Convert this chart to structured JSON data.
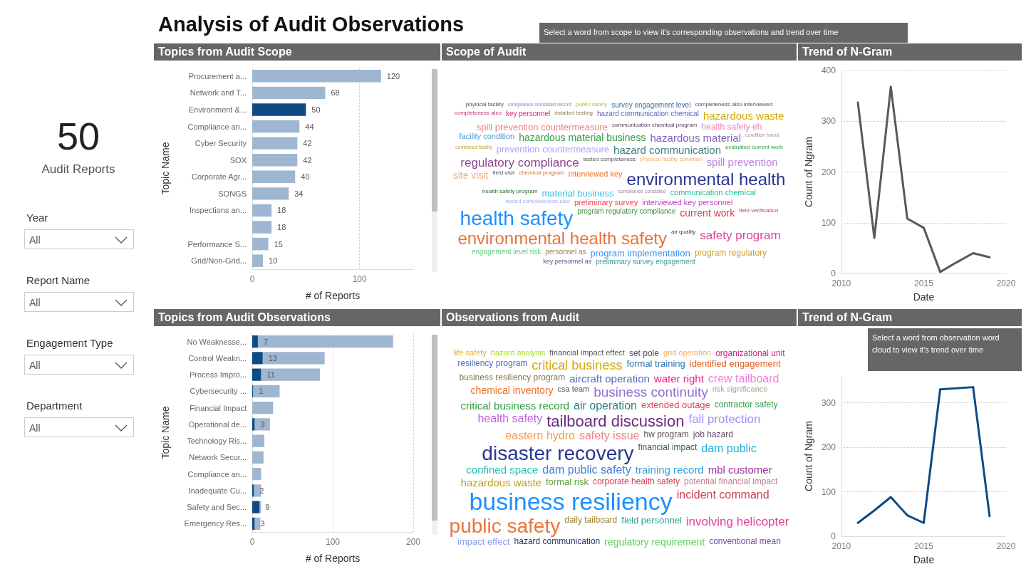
{
  "chart_data": [
    {
      "type": "other",
      "title": "Analysis of Audit Observations",
      "annotations": [
        "50",
        "Audit Reports",
        "Year",
        "All",
        "Report Name",
        "All",
        "Engagement Type",
        "All",
        "Department",
        "All"
      ]
    },
    {
      "type": "bar",
      "title": "Topics from Audit Scope",
      "orientation": "horizontal",
      "categories": [
        "Procurement a...",
        "Network and T...",
        "Environment &...",
        "Compliance an...",
        "Cyber Security",
        "SOX",
        "Corporate Agr...",
        "SONGS",
        "Inspections an...",
        null,
        "Performance S...",
        "Grid/Non-Grid..."
      ],
      "values": [
        120,
        68,
        50,
        44,
        42,
        42,
        40,
        34,
        18,
        18,
        15,
        10
      ],
      "colors": [
        "#9fb6d1",
        "#9fb6d1",
        "#0e4a84",
        "#9fb6d1",
        "#9fb6d1",
        "#9fb6d1",
        "#9fb6d1",
        "#9fb6d1",
        "#9fb6d1",
        "#9fb6d1",
        "#9fb6d1",
        "#9fb6d1"
      ],
      "data_labels": true,
      "xlim": [
        0,
        150
      ],
      "xticks": [
        0,
        100
      ],
      "grid": "x",
      "xlabel": "# of Reports",
      "ylabel": "Topic Name"
    },
    {
      "type": "other",
      "title": "Scope of Audit",
      "categories": [
        "physical facility",
        "compliance consisted record",
        "public safety",
        "survey engagement level",
        "completeness also interviewed",
        "completeness also",
        "key personnel",
        "detailed testing",
        "hazard communication chemical",
        "hazardous waste",
        "spill prevention countermeasure",
        "communication chemical program",
        "health safety eh",
        "facility condition",
        "hazardous material business",
        "hazardous material",
        "condition found",
        "combined facility",
        "prevention countermeasure",
        "hazard communication",
        "evaluated current work",
        "regulatory compliance",
        "tested completeness",
        "physical facility condition",
        "spill prevention",
        "site visit",
        "field visit",
        "chemical program",
        "interviewed key",
        "environmental health",
        "health safety program",
        "material business",
        "compliance consisted",
        "communication chemical",
        "tested completeness also",
        "preliminary survey",
        "interviewed key personnel",
        "health safety",
        "program regulatory compliance",
        "current work",
        "field verification",
        "environmental health safety",
        "air quality",
        "safety program",
        "engagement level risk",
        "personnel as",
        "program implementation",
        "program regulatory",
        "key personnel as",
        "preliminary survey engagement"
      ],
      "colors": [
        "#555555",
        "#7090d0",
        "#9acd32",
        "#3a6ea5",
        "#5a4a6a",
        "#c0307a",
        "#e0208a",
        "#8a7a4a",
        "#5a6ac0",
        "#d4aa00",
        "#f08080",
        "#5a3a5a",
        "#f080c0",
        "#40a0d0",
        "#30a040",
        "#8060c0",
        "#a89090",
        "#c8a030",
        "#b0a0ff",
        "#408080",
        "#30a040",
        "#904090",
        "#555555",
        "#f0b060",
        "#c080e0",
        "#f0b080",
        "#555555",
        "#d07030",
        "#f07020",
        "#283593",
        "#2e6b30",
        "#40c0e0",
        "#a080a0",
        "#20c0a0",
        "#a0b0f0",
        "#f04050",
        "#c040c0",
        "#1e90ff",
        "#409040",
        "#d04050",
        "#d04050",
        "#e8743b",
        "#334060",
        "#e040a0",
        "#60d080",
        "#a08040",
        "#4090f0",
        "#d0a020",
        "#6a4a8a",
        "#40a090"
      ]
    },
    {
      "type": "line",
      "title": "Trend of N-Gram",
      "annotations": [
        "Select a word from scope to view it's corresponding observations and trend over time"
      ],
      "series": [
        {
          "color": "#595959",
          "x": [
            2011,
            2012,
            2013,
            2014,
            2015,
            2016,
            2017,
            2018,
            2019
          ],
          "values": [
            337,
            70,
            368,
            108,
            90,
            3,
            22,
            40,
            32
          ]
        }
      ],
      "xlim": [
        2010,
        2020
      ],
      "xticks": [
        2010,
        2015,
        2020
      ],
      "ylim": [
        0,
        400
      ],
      "yticks": [
        0,
        100,
        200,
        300,
        400
      ],
      "grid": "y",
      "xlabel": "Date",
      "ylabel": "Count of Ngram"
    },
    {
      "type": "bar",
      "title": "Topics from Audit Observations",
      "orientation": "horizontal",
      "categories": [
        "No Weaknesse...",
        "Control Weakn...",
        "Process Impro...",
        "Cybersecurity ...",
        "Financial Impact",
        "Operational de...",
        "Technology Ris...",
        "Network Secur...",
        "Compliance an...",
        "Inadequate Cu...",
        "Safety and Sec...",
        "Emergency Res..."
      ],
      "stacked": true,
      "series": [
        {
          "color": "#0e4a84",
          "values": [
            7,
            13,
            11,
            1,
            null,
            3,
            null,
            null,
            null,
            2,
            9,
            3
          ],
          "value_labels": [
            "7",
            "13",
            "11",
            "1",
            null,
            "3",
            null,
            null,
            null,
            "2",
            "9",
            "3"
          ]
        },
        {
          "color": "#9fb6d1",
          "values": [
            168,
            77,
            73,
            33,
            26,
            19,
            15,
            14,
            11,
            9,
            2,
            7
          ]
        }
      ],
      "xlim": [
        0,
        200
      ],
      "xticks": [
        0,
        100,
        200
      ],
      "grid": "x",
      "xlabel": "# of Reports",
      "ylabel": "Topic Name"
    },
    {
      "type": "other",
      "title": "Observations from Audit",
      "categories": [
        "life safety",
        "hazard analysis",
        "financial impact effect",
        "set pole",
        "grid operation",
        "organizational unit",
        "resiliency program",
        "critical business",
        "formal training",
        "identified engagement",
        "business resiliency program",
        "aircraft operation",
        "water right",
        "crew tailboard",
        "chemical inventory",
        "csa team",
        "business continuity",
        "risk significance",
        "critical business record",
        "air operation",
        "extended outage",
        "contractor safety",
        "health safety",
        "tailboard discussion",
        "fall protection",
        "eastern hydro",
        "safety issue",
        "hw program",
        "job hazard",
        "disaster recovery",
        "financial impact",
        "dam public",
        "confined space",
        "dam public safety",
        "training record",
        "mbl customer",
        "hazardous waste",
        "formal risk",
        "corporate health safety",
        "potential financial impact",
        "business resiliency",
        "incident command",
        "public safety",
        "daily tailboard",
        "field personnel",
        "involving helicopter",
        "impact effect",
        "hazard communication",
        "regulatory requirement",
        "conventional mean"
      ],
      "colors": [
        "#e0b030",
        "#a0e020",
        "#555555",
        "#4a4a6a",
        "#f0b060",
        "#d02080",
        "#5070c0",
        "#d4aa00",
        "#3070b0",
        "#e06020",
        "#8a7a4a",
        "#5070c0",
        "#f02080",
        "#f080e0",
        "#f07020",
        "#4a5a5a",
        "#9070d0",
        "#b0a090",
        "#30a040",
        "#308080",
        "#f04050",
        "#30a040",
        "#c060e0",
        "#6a2a80",
        "#a090ff",
        "#f0a050",
        "#f08080",
        "#555555",
        "#6a4a6a",
        "#283593",
        "#306040",
        "#20b0e0",
        "#20c0b0",
        "#4080e0",
        "#30a0e0",
        "#a030a0",
        "#c0a020",
        "#60a040",
        "#d04050",
        "#c08090",
        "#1e90ff",
        "#d04050",
        "#e8743b",
        "#a08030",
        "#30a090",
        "#e040a0",
        "#8aa0f0",
        "#2a3a6a",
        "#60d060",
        "#7a4aa0"
      ]
    },
    {
      "type": "line",
      "title": "Trend of N-Gram",
      "annotations": [
        "Select a word from observation word cloud to view it's trend over time"
      ],
      "series": [
        {
          "color": "#0e4a84",
          "x": [
            2011,
            2012,
            2013,
            2014,
            2015,
            2016,
            2018,
            2019
          ],
          "values": [
            30,
            58,
            88,
            47,
            30,
            330,
            335,
            45
          ]
        }
      ],
      "xlim": [
        2010,
        2020
      ],
      "xticks": [
        2010,
        2015,
        2020
      ],
      "ylim": [
        0,
        360
      ],
      "yticks": [
        0,
        100,
        200,
        300
      ],
      "grid": "y",
      "xlabel": "Date",
      "ylabel": "Count of Ngram"
    }
  ]
}
